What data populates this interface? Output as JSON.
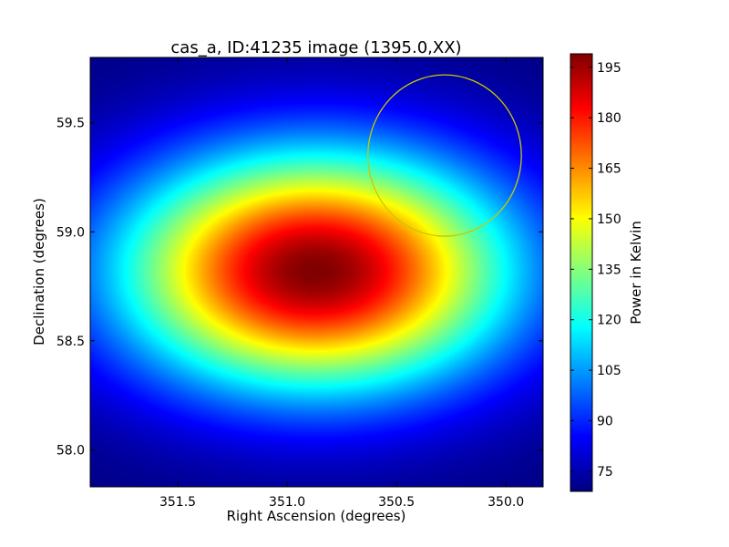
{
  "chart_data": {
    "type": "heatmap",
    "title": "cas_a, ID:41235 image (1395.0,XX)",
    "xlabel": "Right Ascension (degrees)",
    "ylabel": "Declination (degrees)",
    "xlim": [
      351.9,
      349.83
    ],
    "ylim": [
      57.83,
      59.8
    ],
    "x_ticks": [
      351.5,
      351.0,
      350.5,
      350.0
    ],
    "x_tick_labels": [
      "351.5",
      "351.0",
      "350.5",
      "350.0"
    ],
    "y_ticks": [
      58.0,
      58.5,
      59.0,
      59.5
    ],
    "y_tick_labels": [
      "58.0",
      "58.5",
      "59.0",
      "59.5"
    ],
    "colormap": "jet",
    "colorbar": {
      "label": "Power in Kelvin",
      "range": [
        69,
        199
      ],
      "ticks": [
        75,
        90,
        105,
        120,
        135,
        150,
        165,
        180,
        195
      ],
      "tick_labels": [
        "75",
        "90",
        "105",
        "120",
        "135",
        "150",
        "165",
        "180",
        "195"
      ]
    },
    "field": {
      "model": "elliptical gaussian beam",
      "peak_ra": 350.87,
      "peak_dec": 58.82,
      "peak_value": 199,
      "sigma_ra_deg": 0.62,
      "sigma_dec_deg": 0.38,
      "background_value": 69
    },
    "annotations": [
      {
        "type": "circle",
        "ra": 350.28,
        "dec": 59.35,
        "radius_deg": 0.37,
        "color": "#c8c800"
      }
    ]
  }
}
